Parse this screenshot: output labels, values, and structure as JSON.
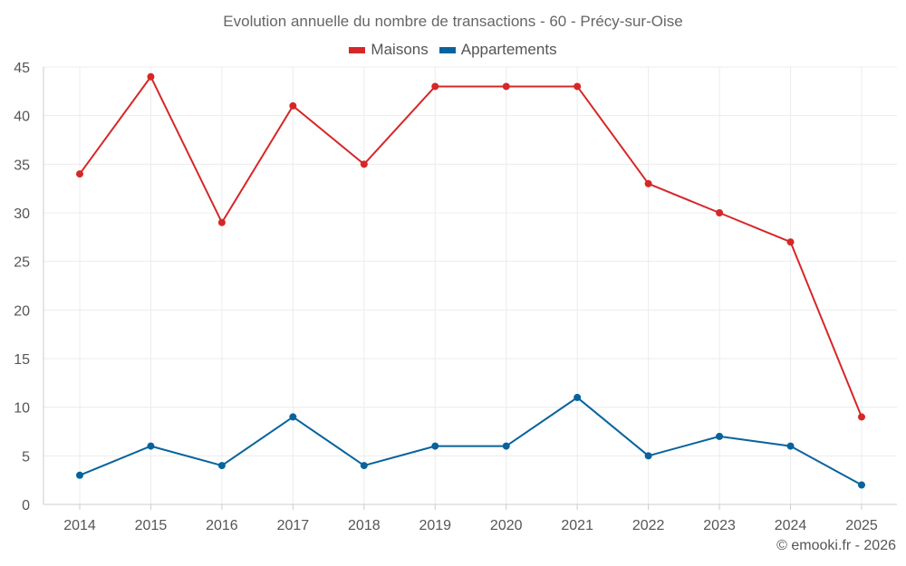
{
  "chart_data": {
    "type": "line",
    "title": "Evolution annuelle du nombre de transactions - 60 - Précy-sur-Oise",
    "categories": [
      "2014",
      "2015",
      "2016",
      "2017",
      "2018",
      "2019",
      "2020",
      "2021",
      "2022",
      "2023",
      "2024",
      "2025"
    ],
    "series": [
      {
        "name": "Maisons",
        "color": "#d62728",
        "values": [
          34,
          44,
          29,
          41,
          35,
          43,
          43,
          43,
          33,
          30,
          27,
          9
        ]
      },
      {
        "name": "Appartements",
        "color": "#08639c",
        "values": [
          3,
          6,
          4,
          9,
          4,
          6,
          6,
          11,
          5,
          7,
          6,
          2
        ]
      }
    ],
    "ylim": [
      0,
      45
    ],
    "yticks": [
      0,
      5,
      10,
      15,
      20,
      25,
      30,
      35,
      40,
      45
    ],
    "xlabel": "",
    "ylabel": "",
    "grid": true,
    "legend_position": "top-center"
  },
  "credit": "© emooki.fr - 2026"
}
